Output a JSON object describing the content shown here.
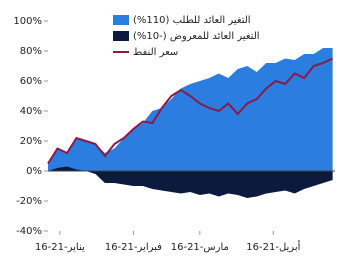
{
  "chart_data": {
    "type": "area",
    "x": [
      "2021-01-11",
      "2021-01-15",
      "2021-01-19",
      "2021-01-23",
      "2021-01-27",
      "2021-01-31",
      "2021-02-04",
      "2021-02-08",
      "2021-02-12",
      "2021-02-16",
      "2021-02-20",
      "2021-02-24",
      "2021-02-28",
      "2021-03-04",
      "2021-03-08",
      "2021-03-12",
      "2021-03-16",
      "2021-03-20",
      "2021-03-24",
      "2021-03-28",
      "2021-04-01",
      "2021-04-05",
      "2021-04-09",
      "2021-04-13",
      "2021-04-17",
      "2021-04-21",
      "2021-04-25",
      "2021-04-29",
      "2021-05-03",
      "2021-05-07",
      "2021-05-11"
    ],
    "series": [
      {
        "name": "التغير العائد للطلب (110%)",
        "color": "#2b7ddf",
        "style": "area",
        "values": [
          5,
          15,
          12,
          22,
          20,
          18,
          12,
          15,
          22,
          28,
          32,
          40,
          42,
          48,
          55,
          58,
          60,
          62,
          65,
          62,
          68,
          70,
          66,
          72,
          72,
          75,
          74,
          78,
          78,
          82,
          82
        ]
      },
      {
        "name": "التغير العائد للمعروض (-10%)",
        "color": "#0b1a3d",
        "style": "area",
        "values": [
          0,
          2,
          3,
          1,
          0,
          -2,
          -8,
          -8,
          -9,
          -10,
          -10,
          -12,
          -13,
          -14,
          -15,
          -14,
          -16,
          -15,
          -17,
          -15,
          -16,
          -18,
          -17,
          -15,
          -14,
          -13,
          -15,
          -12,
          -10,
          -8,
          -6
        ]
      },
      {
        "name": "سعر النفط",
        "color": "#8b1a4a",
        "style": "line",
        "values": [
          5,
          15,
          12,
          22,
          20,
          18,
          10,
          18,
          22,
          28,
          33,
          32,
          42,
          50,
          54,
          50,
          45,
          42,
          40,
          45,
          38,
          45,
          48,
          55,
          60,
          58,
          65,
          62,
          70,
          72,
          75
        ]
      }
    ],
    "xlim": [
      "2021-01-11",
      "2021-05-12"
    ],
    "xticks": [
      {
        "value": "2021-01-16",
        "label": "16-يناير-21"
      },
      {
        "value": "2021-02-16",
        "label": "16-فبراير-21"
      },
      {
        "value": "2021-03-16",
        "label": "16-مارس-21"
      },
      {
        "value": "2021-04-16",
        "label": "16-أبريل-21"
      }
    ],
    "ylim": [
      -40,
      100
    ],
    "yticks": [
      {
        "value": -40,
        "label": "-40%"
      },
      {
        "value": -20,
        "label": "-20%"
      },
      {
        "value": 0,
        "label": "0%"
      },
      {
        "value": 20,
        "label": "20%"
      },
      {
        "value": 40,
        "label": "40%"
      },
      {
        "value": 60,
        "label": "60%"
      },
      {
        "value": 80,
        "label": "80%"
      },
      {
        "value": 100,
        "label": "100%"
      }
    ]
  }
}
